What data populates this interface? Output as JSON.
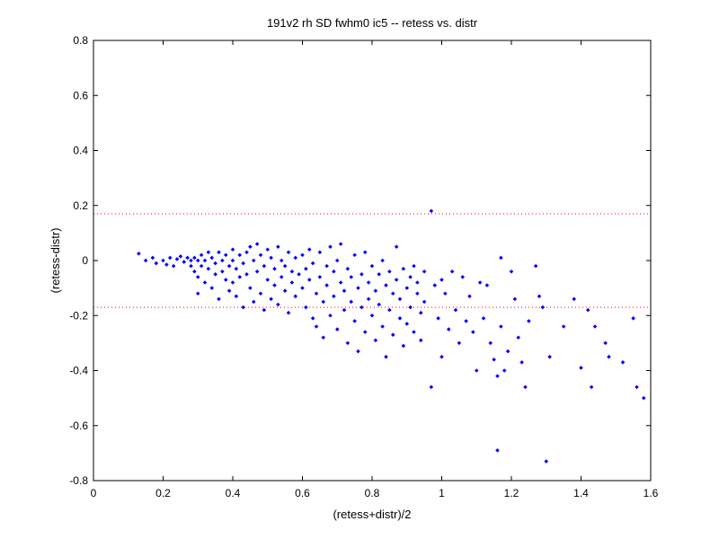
{
  "chart_data": {
    "type": "scatter",
    "title": "191v2 rh SD fwhm0 ic5 -- retess vs. distr",
    "xlabel": "(retess+distr)/2",
    "ylabel": "(retess-distr)",
    "xlim": [
      0,
      1.6
    ],
    "ylim": [
      -0.8,
      0.8
    ],
    "xticks": [
      0,
      0.2,
      0.4,
      0.6,
      0.8,
      1,
      1.2,
      1.4,
      1.6
    ],
    "yticks": [
      -0.8,
      -0.6,
      -0.4,
      -0.2,
      0,
      0.2,
      0.4,
      0.6,
      0.8
    ],
    "xtick_labels": [
      "0",
      "0.2",
      "0.4",
      "0.6",
      "0.8",
      "1",
      "1.2",
      "1.4",
      "1.6"
    ],
    "ytick_labels": [
      "-0.8",
      "-0.6",
      "-0.4",
      "-0.2",
      "0",
      "0.2",
      "0.4",
      "0.6",
      "0.8"
    ],
    "grid": false,
    "marker_color": "#0000ff",
    "reference_line_color": "#ff0000",
    "reference_lines_y": [
      0.17,
      -0.17
    ],
    "series": [
      {
        "points": [
          [
            0.13,
            0.025
          ],
          [
            0.15,
            0.0
          ],
          [
            0.17,
            0.01
          ],
          [
            0.18,
            -0.01
          ],
          [
            0.2,
            0.0
          ],
          [
            0.21,
            -0.015
          ],
          [
            0.22,
            0.01
          ],
          [
            0.23,
            -0.02
          ],
          [
            0.24,
            0.005
          ],
          [
            0.25,
            0.015
          ],
          [
            0.26,
            -0.005
          ],
          [
            0.27,
            0.01
          ],
          [
            0.28,
            0.0
          ],
          [
            0.28,
            -0.02
          ],
          [
            0.29,
            0.01
          ],
          [
            0.29,
            -0.04
          ],
          [
            0.3,
            0.0
          ],
          [
            0.3,
            -0.06
          ],
          [
            0.3,
            -0.12
          ],
          [
            0.31,
            0.02
          ],
          [
            0.31,
            -0.02
          ],
          [
            0.32,
            0.0
          ],
          [
            0.32,
            -0.08
          ],
          [
            0.33,
            0.03
          ],
          [
            0.33,
            -0.03
          ],
          [
            0.34,
            0.01
          ],
          [
            0.34,
            -0.1
          ],
          [
            0.35,
            -0.01
          ],
          [
            0.35,
            -0.05
          ],
          [
            0.36,
            0.03
          ],
          [
            0.36,
            -0.14
          ],
          [
            0.37,
            0.0
          ],
          [
            0.37,
            -0.04
          ],
          [
            0.38,
            0.02
          ],
          [
            0.38,
            -0.07
          ],
          [
            0.39,
            -0.02
          ],
          [
            0.39,
            -0.11
          ],
          [
            0.4,
            0.04
          ],
          [
            0.4,
            0.0
          ],
          [
            0.4,
            -0.08
          ],
          [
            0.41,
            -0.03
          ],
          [
            0.41,
            -0.13
          ],
          [
            0.42,
            0.02
          ],
          [
            0.42,
            -0.06
          ],
          [
            0.43,
            -0.01
          ],
          [
            0.43,
            -0.17
          ],
          [
            0.44,
            0.03
          ],
          [
            0.44,
            -0.05
          ],
          [
            0.45,
            0.05
          ],
          [
            0.45,
            -0.1
          ],
          [
            0.46,
            0.0
          ],
          [
            0.46,
            -0.15
          ],
          [
            0.47,
            0.06
          ],
          [
            0.47,
            -0.04
          ],
          [
            0.48,
            0.02
          ],
          [
            0.48,
            -0.12
          ],
          [
            0.49,
            -0.02
          ],
          [
            0.49,
            -0.18
          ],
          [
            0.5,
            0.04
          ],
          [
            0.5,
            -0.07
          ],
          [
            0.51,
            0.01
          ],
          [
            0.51,
            -0.14
          ],
          [
            0.52,
            -0.03
          ],
          [
            0.52,
            -0.09
          ],
          [
            0.53,
            0.05
          ],
          [
            0.53,
            -0.16
          ],
          [
            0.54,
            0.0
          ],
          [
            0.54,
            -0.06
          ],
          [
            0.55,
            -0.02
          ],
          [
            0.55,
            -0.11
          ],
          [
            0.56,
            0.03
          ],
          [
            0.56,
            -0.19
          ],
          [
            0.57,
            -0.04
          ],
          [
            0.57,
            -0.08
          ],
          [
            0.58,
            0.01
          ],
          [
            0.58,
            -0.13
          ],
          [
            0.59,
            -0.05
          ],
          [
            0.6,
            0.02
          ],
          [
            0.6,
            -0.1
          ],
          [
            0.61,
            -0.03
          ],
          [
            0.61,
            -0.17
          ],
          [
            0.62,
            0.04
          ],
          [
            0.62,
            -0.07
          ],
          [
            0.63,
            -0.01
          ],
          [
            0.63,
            -0.21
          ],
          [
            0.64,
            -0.12
          ],
          [
            0.64,
            -0.24
          ],
          [
            0.65,
            0.03
          ],
          [
            0.65,
            -0.06
          ],
          [
            0.66,
            -0.15
          ],
          [
            0.66,
            -0.28
          ],
          [
            0.67,
            -0.02
          ],
          [
            0.67,
            -0.09
          ],
          [
            0.68,
            0.05
          ],
          [
            0.68,
            -0.2
          ],
          [
            0.69,
            -0.04
          ],
          [
            0.69,
            -0.13
          ],
          [
            0.7,
            0.0
          ],
          [
            0.7,
            -0.25
          ],
          [
            0.71,
            -0.08
          ],
          [
            0.71,
            0.06
          ],
          [
            0.72,
            -0.11
          ],
          [
            0.72,
            -0.18
          ],
          [
            0.73,
            -0.03
          ],
          [
            0.73,
            -0.3
          ],
          [
            0.74,
            -0.06
          ],
          [
            0.74,
            -0.15
          ],
          [
            0.75,
            0.02
          ],
          [
            0.75,
            -0.22
          ],
          [
            0.76,
            -0.1
          ],
          [
            0.76,
            -0.33
          ],
          [
            0.77,
            -0.05
          ],
          [
            0.77,
            -0.17
          ],
          [
            0.78,
            0.03
          ],
          [
            0.78,
            -0.26
          ],
          [
            0.79,
            -0.08
          ],
          [
            0.79,
            -0.14
          ],
          [
            0.8,
            -0.02
          ],
          [
            0.8,
            -0.2
          ],
          [
            0.81,
            -0.11
          ],
          [
            0.81,
            -0.29
          ],
          [
            0.82,
            -0.05
          ],
          [
            0.82,
            -0.16
          ],
          [
            0.83,
            0.0
          ],
          [
            0.83,
            -0.24
          ],
          [
            0.84,
            -0.09
          ],
          [
            0.84,
            -0.35
          ],
          [
            0.85,
            -0.04
          ],
          [
            0.85,
            -0.18
          ],
          [
            0.86,
            -0.12
          ],
          [
            0.86,
            -0.27
          ],
          [
            0.87,
            0.05
          ],
          [
            0.87,
            -0.07
          ],
          [
            0.88,
            -0.14
          ],
          [
            0.88,
            -0.21
          ],
          [
            0.89,
            -0.03
          ],
          [
            0.89,
            -0.31
          ],
          [
            0.9,
            -0.1
          ],
          [
            0.9,
            -0.23
          ],
          [
            0.91,
            -0.06
          ],
          [
            0.91,
            -0.17
          ],
          [
            0.92,
            -0.02
          ],
          [
            0.92,
            -0.26
          ],
          [
            0.93,
            -0.12
          ],
          [
            0.93,
            -0.08
          ],
          [
            0.94,
            -0.19
          ],
          [
            0.94,
            -0.29
          ],
          [
            0.95,
            -0.04
          ],
          [
            0.95,
            -0.15
          ],
          [
            0.97,
            0.18
          ],
          [
            0.97,
            -0.46
          ],
          [
            0.98,
            -0.09
          ],
          [
            0.99,
            -0.21
          ],
          [
            1.0,
            -0.07
          ],
          [
            1.0,
            -0.35
          ],
          [
            1.01,
            -0.12
          ],
          [
            1.02,
            -0.25
          ],
          [
            1.03,
            -0.04
          ],
          [
            1.04,
            -0.18
          ],
          [
            1.05,
            -0.3
          ],
          [
            1.06,
            -0.06
          ],
          [
            1.07,
            -0.22
          ],
          [
            1.08,
            -0.13
          ],
          [
            1.09,
            -0.26
          ],
          [
            1.1,
            -0.4
          ],
          [
            1.11,
            -0.08
          ],
          [
            1.12,
            -0.21
          ],
          [
            1.13,
            -0.09
          ],
          [
            1.14,
            -0.3
          ],
          [
            1.15,
            -0.36
          ],
          [
            1.16,
            -0.42
          ],
          [
            1.16,
            -0.69
          ],
          [
            1.17,
            0.01
          ],
          [
            1.17,
            -0.24
          ],
          [
            1.18,
            -0.4
          ],
          [
            1.19,
            -0.33
          ],
          [
            1.2,
            -0.04
          ],
          [
            1.21,
            -0.14
          ],
          [
            1.22,
            -0.28
          ],
          [
            1.23,
            -0.37
          ],
          [
            1.24,
            -0.46
          ],
          [
            1.25,
            -0.22
          ],
          [
            1.27,
            -0.02
          ],
          [
            1.28,
            -0.13
          ],
          [
            1.29,
            -0.17
          ],
          [
            1.3,
            -0.73
          ],
          [
            1.31,
            -0.35
          ],
          [
            1.35,
            -0.24
          ],
          [
            1.38,
            -0.14
          ],
          [
            1.4,
            -0.39
          ],
          [
            1.42,
            -0.18
          ],
          [
            1.43,
            -0.46
          ],
          [
            1.44,
            -0.24
          ],
          [
            1.47,
            -0.3
          ],
          [
            1.48,
            -0.35
          ],
          [
            1.52,
            -0.37
          ],
          [
            1.55,
            -0.21
          ],
          [
            1.56,
            -0.46
          ],
          [
            1.58,
            -0.5
          ]
        ]
      }
    ]
  }
}
